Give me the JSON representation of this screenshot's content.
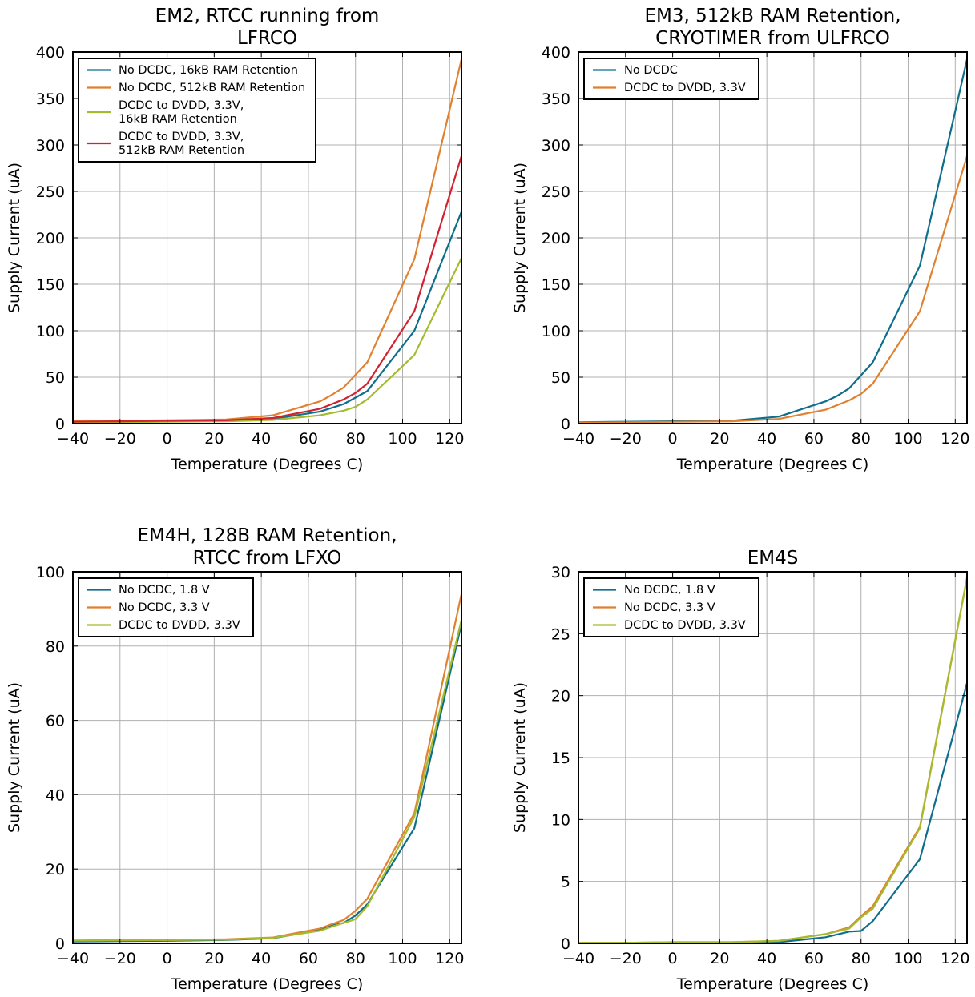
{
  "colors": {
    "teal": "#0e6e8c",
    "orange": "#e0812f",
    "green": "#a5bb2e",
    "red": "#d1232f",
    "grid": "#b0b0b0"
  },
  "chart_data": [
    {
      "type": "line",
      "title": [
        "EM2, RTCC running from",
        "LFRCO"
      ],
      "xlabel": "Temperature (Degrees C)",
      "ylabel": "Supply Current (uA)",
      "xlim": [
        -40,
        125
      ],
      "ylim": [
        0,
        400
      ],
      "xticks": [
        -40,
        -20,
        0,
        20,
        40,
        60,
        80,
        100,
        120
      ],
      "yticks": [
        0,
        50,
        100,
        150,
        200,
        250,
        300,
        350,
        400
      ],
      "grid": true,
      "legend_position": "top-left",
      "series": [
        {
          "name": [
            "No DCDC, 16kB RAM Retention"
          ],
          "color": "#0e6e8c",
          "x": [
            -40,
            -20,
            0,
            25,
            45,
            65,
            75,
            85,
            105,
            125
          ],
          "y": [
            1.5,
            2,
            2.5,
            3,
            5,
            13,
            21,
            35,
            100,
            228
          ]
        },
        {
          "name": [
            "No DCDC, 512kB RAM Retention"
          ],
          "color": "#e0812f",
          "x": [
            -40,
            -20,
            0,
            25,
            45,
            65,
            70,
            75,
            85,
            105,
            125
          ],
          "y": [
            2.5,
            3,
            3.5,
            4.5,
            9,
            24,
            31,
            39,
            66,
            177,
            392
          ]
        },
        {
          "name": [
            "DCDC to DVDD, 3.3V,",
            "16kB RAM Retention"
          ],
          "color": "#a5bb2e",
          "x": [
            -40,
            -20,
            0,
            25,
            45,
            65,
            75,
            80,
            85,
            105,
            125
          ],
          "y": [
            1,
            1.5,
            2,
            2.5,
            4,
            9,
            14,
            18,
            26,
            74,
            178
          ]
        },
        {
          "name": [
            "DCDC to DVDD, 3.3V,",
            "512kB RAM Retention"
          ],
          "color": "#d1232f",
          "x": [
            -40,
            -20,
            0,
            25,
            45,
            65,
            75,
            80,
            85,
            105,
            125
          ],
          "y": [
            2,
            2.5,
            3,
            3.5,
            6,
            16,
            26,
            33,
            43,
            121,
            288
          ]
        }
      ]
    },
    {
      "type": "line",
      "title": [
        "EM3, 512kB RAM Retention,",
        "CRYOTIMER from ULFRCO"
      ],
      "xlabel": "Temperature (Degrees C)",
      "ylabel": "Supply Current (uA)",
      "xlim": [
        -40,
        125
      ],
      "ylim": [
        0,
        400
      ],
      "xticks": [
        -40,
        -20,
        0,
        20,
        40,
        60,
        80,
        100,
        120
      ],
      "yticks": [
        0,
        50,
        100,
        150,
        200,
        250,
        300,
        350,
        400
      ],
      "grid": true,
      "legend_position": "top-left",
      "series": [
        {
          "name": [
            "No DCDC"
          ],
          "color": "#0e6e8c",
          "x": [
            -40,
            -20,
            0,
            25,
            45,
            65,
            70,
            75,
            85,
            105,
            125
          ],
          "y": [
            1.5,
            2,
            2.5,
            3,
            7.5,
            24,
            30,
            38,
            66,
            170,
            392
          ]
        },
        {
          "name": [
            "DCDC to DVDD, 3.3V"
          ],
          "color": "#e0812f",
          "x": [
            -40,
            -20,
            0,
            25,
            45,
            65,
            75,
            80,
            85,
            105,
            125
          ],
          "y": [
            1,
            1.5,
            2,
            2.5,
            5,
            15,
            25,
            32,
            43,
            121,
            288
          ]
        }
      ]
    },
    {
      "type": "line",
      "title": [
        "EM4H, 128B RAM Retention,",
        "RTCC from LFXO"
      ],
      "xlabel": "Temperature (Degrees C)",
      "ylabel": "Supply Current (uA)",
      "xlim": [
        -40,
        125
      ],
      "ylim": [
        0,
        100
      ],
      "xticks": [
        -40,
        -20,
        0,
        20,
        40,
        60,
        80,
        100,
        120
      ],
      "yticks": [
        0,
        20,
        40,
        60,
        80,
        100
      ],
      "grid": true,
      "legend_position": "top-left",
      "series": [
        {
          "name": [
            "No DCDC, 1.8 V"
          ],
          "color": "#0e6e8c",
          "x": [
            -40,
            -20,
            0,
            25,
            45,
            65,
            70,
            75,
            80,
            85,
            105,
            125
          ],
          "y": [
            0.5,
            0.6,
            0.7,
            0.9,
            1.4,
            3.6,
            4.8,
            5.5,
            7.5,
            10.5,
            31,
            86
          ]
        },
        {
          "name": [
            "No DCDC, 3.3 V"
          ],
          "color": "#e0812f",
          "x": [
            -40,
            -20,
            0,
            25,
            45,
            65,
            70,
            75,
            80,
            85,
            105,
            125
          ],
          "y": [
            0.7,
            0.8,
            0.9,
            1.1,
            1.6,
            4,
            5.2,
            6.3,
            8.8,
            12,
            35,
            94
          ]
        },
        {
          "name": [
            "DCDC to DVDD, 3.3V"
          ],
          "color": "#a5bb2e",
          "x": [
            -40,
            -20,
            0,
            25,
            45,
            65,
            70,
            75,
            80,
            85,
            105,
            125
          ],
          "y": [
            0.8,
            0.9,
            0.9,
            1,
            1.5,
            3.4,
            4.5,
            5.5,
            6.5,
            10,
            34,
            87
          ]
        }
      ]
    },
    {
      "type": "line",
      "title": [
        "EM4S"
      ],
      "xlabel": "Temperature (Degrees C)",
      "ylabel": "Supply Current (uA)",
      "xlim": [
        -40,
        125
      ],
      "ylim": [
        0,
        30
      ],
      "xticks": [
        -40,
        -20,
        0,
        20,
        40,
        60,
        80,
        100,
        120
      ],
      "yticks": [
        0,
        5,
        10,
        15,
        20,
        25,
        30
      ],
      "grid": true,
      "legend_position": "top-left",
      "series": [
        {
          "name": [
            "No DCDC, 1.8 V"
          ],
          "color": "#0e6e8c",
          "x": [
            -40,
            -20,
            0,
            25,
            45,
            65,
            75,
            80,
            85,
            105,
            125
          ],
          "y": [
            0.05,
            0.05,
            0.05,
            0.05,
            0.1,
            0.5,
            0.95,
            1,
            1.8,
            6.8,
            21
          ]
        },
        {
          "name": [
            "No DCDC, 3.3 V"
          ],
          "color": "#e0812f",
          "x": [
            -40,
            -20,
            0,
            25,
            45,
            65,
            75,
            80,
            85,
            105,
            125
          ],
          "y": [
            0.05,
            0.05,
            0.1,
            0.1,
            0.2,
            0.75,
            1.3,
            2.2,
            3,
            9.4,
            29.5
          ]
        },
        {
          "name": [
            "DCDC to DVDD, 3.3V"
          ],
          "color": "#a5bb2e",
          "x": [
            -40,
            -20,
            0,
            25,
            45,
            65,
            75,
            80,
            85,
            105,
            125
          ],
          "y": [
            0.05,
            0.05,
            0.1,
            0.1,
            0.2,
            0.75,
            1.2,
            2.1,
            2.8,
            9.3,
            29.5
          ]
        }
      ]
    }
  ]
}
